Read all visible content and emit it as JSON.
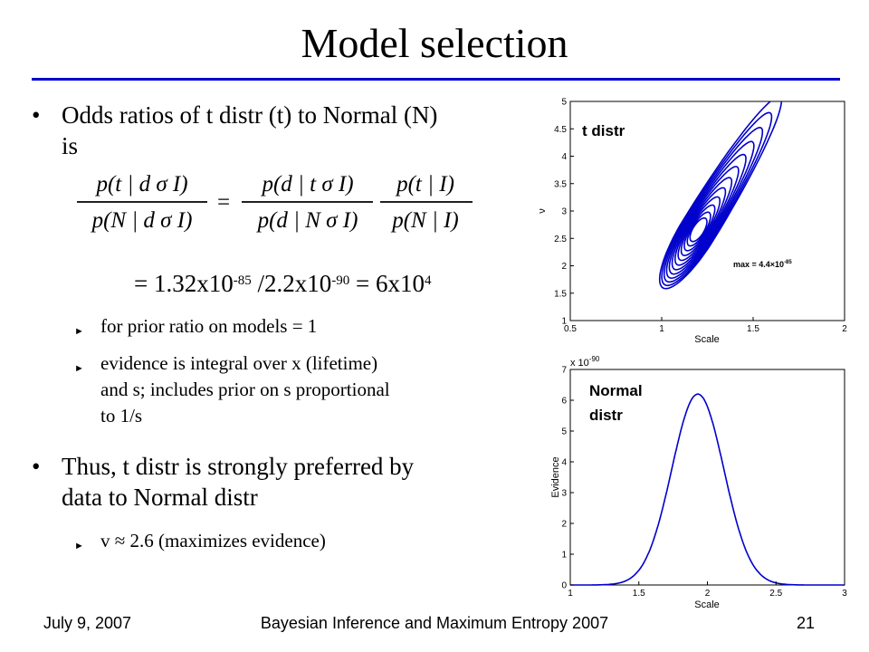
{
  "slide": {
    "title": "Model selection"
  },
  "bullets": {
    "b1_line1": "Odds ratios of t distr (t) to Normal (N)",
    "b1_line2": "is",
    "result_prefix": "= 1.32x10",
    "result_exp1": "-85",
    "result_mid": " /2.2x10",
    "result_exp2": "-90",
    "result_eq": " = 6x10",
    "result_exp3": "4",
    "sub1": "for prior ratio on models = 1",
    "sub2_line1": "evidence is integral over x (lifetime)",
    "sub2_line2": "and s; includes prior on s proportional",
    "sub2_line3": "to 1/s",
    "b2_line1": "Thus, t distr is strongly preferred by",
    "b2_line2": "data to Normal distr",
    "sub3": "v ≈ 2.6  (maximizes evidence)"
  },
  "equation": {
    "lhs_num": "p(t | d σ I)",
    "lhs_den": "p(N | d σ I)",
    "rhs1_num": "p(d | t σ I)",
    "rhs1_den": "p(d | N σ I)",
    "rhs2_num": "p(t | I)",
    "rhs2_den": "p(N | I)"
  },
  "icons": {
    "bullet": "round-bullet",
    "subbullet": "right-pointer-arrow"
  },
  "colors": {
    "rule": "#0000cc",
    "curve": "#0000cc"
  },
  "chart_data": [
    {
      "type": "contour",
      "panel_label": "t distr",
      "xlabel": "Scale",
      "ylabel": "ν",
      "xlim": [
        0.5,
        2
      ],
      "ylim": [
        1,
        5
      ],
      "x_ticks": [
        "0.5",
        "1",
        "1.5",
        "2"
      ],
      "y_ticks": [
        "1",
        "1.5",
        "2",
        "2.5",
        "3",
        "3.5",
        "4",
        "4.5",
        "5"
      ],
      "annotation": "max = 4.4×10",
      "annotation_exp": "-85",
      "peak": {
        "x": 1.2,
        "y": 2.65
      },
      "levels": 12
    },
    {
      "type": "line",
      "panel_label_line1": "Normal",
      "panel_label_line2": "distr",
      "xlabel": "Scale",
      "ylabel": "Evidence",
      "y_multiplier": "x 10",
      "y_multiplier_exp": "-90",
      "xlim": [
        1,
        3
      ],
      "ylim": [
        0,
        7
      ],
      "x_ticks": [
        "1",
        "1.5",
        "2",
        "2.5",
        "3"
      ],
      "y_ticks": [
        "0",
        "1",
        "2",
        "3",
        "4",
        "5",
        "6",
        "7"
      ],
      "peak": {
        "x": 1.93,
        "y": 6.2
      },
      "width": 0.19
    }
  ],
  "footer": {
    "date": "July 9, 2007",
    "conference": "Bayesian Inference and Maximum Entropy 2007",
    "page": "21"
  }
}
